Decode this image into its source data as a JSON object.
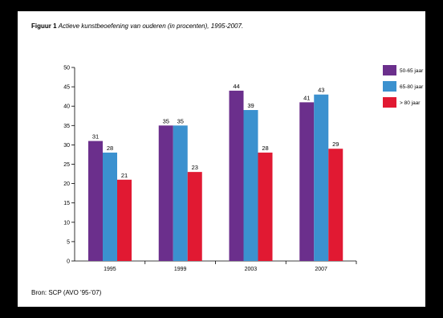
{
  "figure": {
    "number_label": "Figuur 1",
    "caption": "Actieve kunstbeoefening van ouderen (in procenten), 1995-2007.",
    "source": "Bron: SCP (AVO '95-'07)"
  },
  "chart_data": {
    "type": "bar",
    "title": "Actieve kunstbeoefening van ouderen (in procenten), 1995-2007.",
    "xlabel": "",
    "ylabel": "",
    "categories": [
      "1995",
      "1999",
      "2003",
      "2007"
    ],
    "series": [
      {
        "name": "50-65 jaar",
        "color": "#6b2f8c",
        "values": [
          31,
          35,
          44,
          41
        ]
      },
      {
        "name": "65-80 jaar",
        "color": "#3b91cf",
        "values": [
          28,
          35,
          39,
          43
        ]
      },
      {
        "name": "> 80 jaar",
        "color": "#e11932",
        "values": [
          21,
          23,
          28,
          29
        ]
      }
    ],
    "data_labels": [
      [
        "31",
        "35",
        "44",
        "41"
      ],
      [
        "28",
        "35",
        "39",
        "43"
      ],
      [
        "21",
        "23",
        "28",
        "29"
      ]
    ],
    "ylim": [
      0,
      50
    ],
    "yticks": [
      0,
      5,
      10,
      15,
      20,
      25,
      30,
      35,
      40,
      45,
      50
    ],
    "grid": false,
    "legend": "right"
  }
}
